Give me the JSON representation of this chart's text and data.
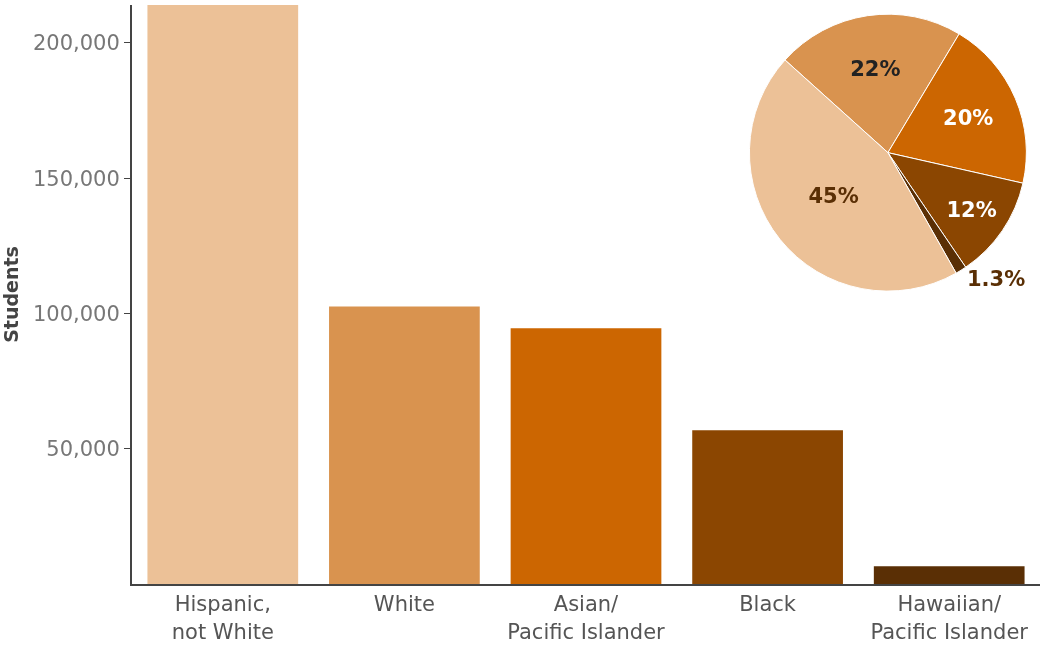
{
  "chart_data": [
    {
      "type": "bar",
      "ylabel": "Students",
      "categories": [
        "Hispanic,\nnot White",
        "White",
        "Asian/\nPacific Islander",
        "Black",
        "Hawaiian/\nPacific Islander"
      ],
      "values": [
        214000,
        102600,
        94500,
        56800,
        6600
      ],
      "colors": [
        "#ecc197",
        "#d9934f",
        "#cc6601",
        "#8b4601",
        "#5a2f05"
      ],
      "ylim": [
        0,
        214000
      ],
      "yticks": [
        {
          "value": 50000,
          "label": "50,000"
        },
        {
          "value": 100000,
          "label": "100,000"
        },
        {
          "value": 150000,
          "label": "150,000"
        },
        {
          "value": 200000,
          "label": "200,000"
        }
      ]
    },
    {
      "type": "pie",
      "categories": [
        null,
        null,
        null,
        null,
        null
      ],
      "values": [
        22,
        20,
        12,
        1.3,
        45
      ],
      "value_labels": [
        "22%",
        "20%",
        "12%",
        "1.3%",
        "45%"
      ],
      "colors": [
        "#d9934f",
        "#cc6601",
        "#8b4601",
        "#5a2f05",
        "#ecc197"
      ]
    }
  ]
}
